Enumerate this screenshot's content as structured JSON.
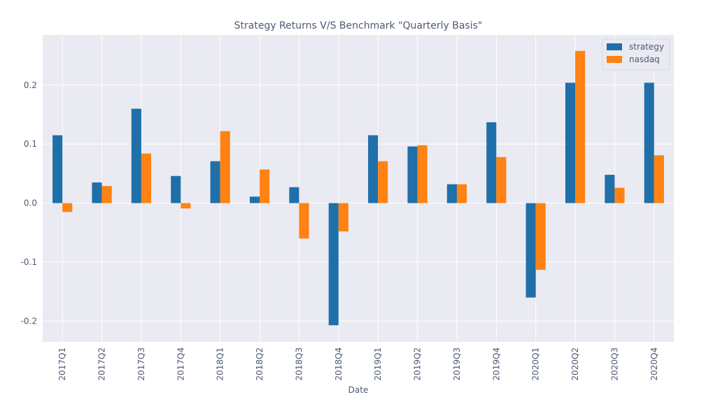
{
  "chart_data": {
    "type": "bar",
    "title": "Strategy Returns V/S Benchmark \"Quarterly Basis\"",
    "xlabel": "Date",
    "ylabel": "",
    "categories": [
      "2017Q1",
      "2017Q2",
      "2017Q3",
      "2017Q4",
      "2018Q1",
      "2018Q2",
      "2018Q3",
      "2018Q4",
      "2019Q1",
      "2019Q2",
      "2019Q3",
      "2019Q4",
      "2020Q1",
      "2020Q2",
      "2020Q3",
      "2020Q4"
    ],
    "series": [
      {
        "name": "strategy",
        "color": "#1f6fa8",
        "values": [
          0.115,
          0.035,
          0.16,
          0.046,
          0.071,
          0.011,
          0.027,
          -0.207,
          0.115,
          0.096,
          0.032,
          0.137,
          -0.16,
          0.204,
          0.048,
          0.204
        ]
      },
      {
        "name": "nasdaq",
        "color": "#ff8212",
        "values": [
          -0.015,
          0.029,
          0.084,
          -0.009,
          0.122,
          0.057,
          -0.06,
          -0.048,
          0.071,
          0.098,
          0.032,
          0.078,
          -0.113,
          0.258,
          0.026,
          0.081
        ]
      }
    ],
    "yticks": [
      -0.2,
      -0.1,
      0.0,
      0.1,
      0.2
    ],
    "ytick_labels": [
      "-0.2",
      "-0.1",
      "0.0",
      "0.1",
      "0.2"
    ],
    "ylim": [
      -0.235,
      0.285
    ],
    "grid": true,
    "legend": "top-right"
  },
  "colors": {
    "plot_background": "#eaeaf2",
    "grid": "#ffffff",
    "text": "#4d5a73"
  }
}
